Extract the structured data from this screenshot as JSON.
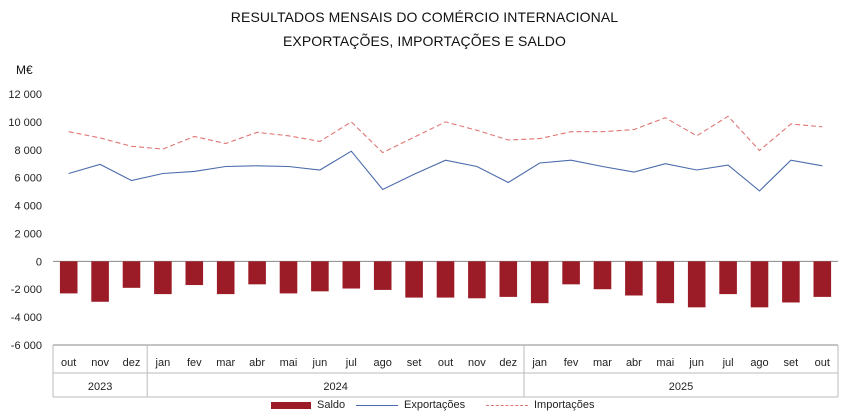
{
  "chart_data": {
    "type": "bar",
    "title": "RESULTADOS MENSAIS DO COMÉRCIO INTERNACIONAL",
    "subtitle": "EXPORTAÇÕES, IMPORTAÇÕES E SALDO",
    "ylabel": "M€",
    "ylim": [
      -6000,
      12000
    ],
    "yticks": [
      "12 000",
      "10 000",
      "8 000",
      "6 000",
      "4 000",
      "2 000",
      "0",
      "-2 000",
      "-4 000",
      "-6 000"
    ],
    "ytick_values": [
      12000,
      10000,
      8000,
      6000,
      4000,
      2000,
      0,
      -2000,
      -4000,
      -6000
    ],
    "categories": [
      "out",
      "nov",
      "dez",
      "jan",
      "fev",
      "mar",
      "abr",
      "mai",
      "jun",
      "jul",
      "ago",
      "set",
      "out",
      "nov",
      "dez",
      "jan",
      "fev",
      "mar",
      "abr",
      "mai",
      "jun",
      "jul",
      "ago",
      "set",
      "out"
    ],
    "year_groups": [
      {
        "label": "2023",
        "count": 3
      },
      {
        "label": "2024",
        "count": 12
      },
      {
        "label": "2025",
        "count": 10
      }
    ],
    "grid": false,
    "legend_position": "bottom",
    "series": [
      {
        "name": "Saldo",
        "kind": "bar",
        "color": "#9b1c26",
        "values": [
          -2300,
          -2900,
          -1900,
          -2350,
          -1700,
          -2350,
          -1650,
          -2300,
          -2150,
          -1950,
          -2050,
          -2600,
          -2600,
          -2650,
          -2550,
          -3000,
          -1650,
          -2000,
          -2450,
          -3000,
          -3300,
          -2350,
          -3300,
          -2950,
          -2550
        ]
      },
      {
        "name": "Exportações",
        "kind": "line",
        "color": "#4a6bab",
        "values": [
          6300,
          6950,
          5800,
          6300,
          6450,
          6800,
          6850,
          6800,
          6550,
          7900,
          5150,
          6250,
          7250,
          6800,
          5650,
          7050,
          7250,
          6800,
          6400,
          7000,
          6550,
          6900,
          5050,
          7250,
          6850
        ]
      },
      {
        "name": "Importações",
        "kind": "line-dashed",
        "color": "#e07575",
        "values": [
          9300,
          8850,
          8250,
          8050,
          8950,
          8450,
          9250,
          9000,
          8600,
          10000,
          7800,
          8900,
          10000,
          9400,
          8700,
          8800,
          9300,
          9300,
          9450,
          10300,
          9000,
          10400,
          7950,
          9850,
          9650
        ]
      }
    ]
  }
}
